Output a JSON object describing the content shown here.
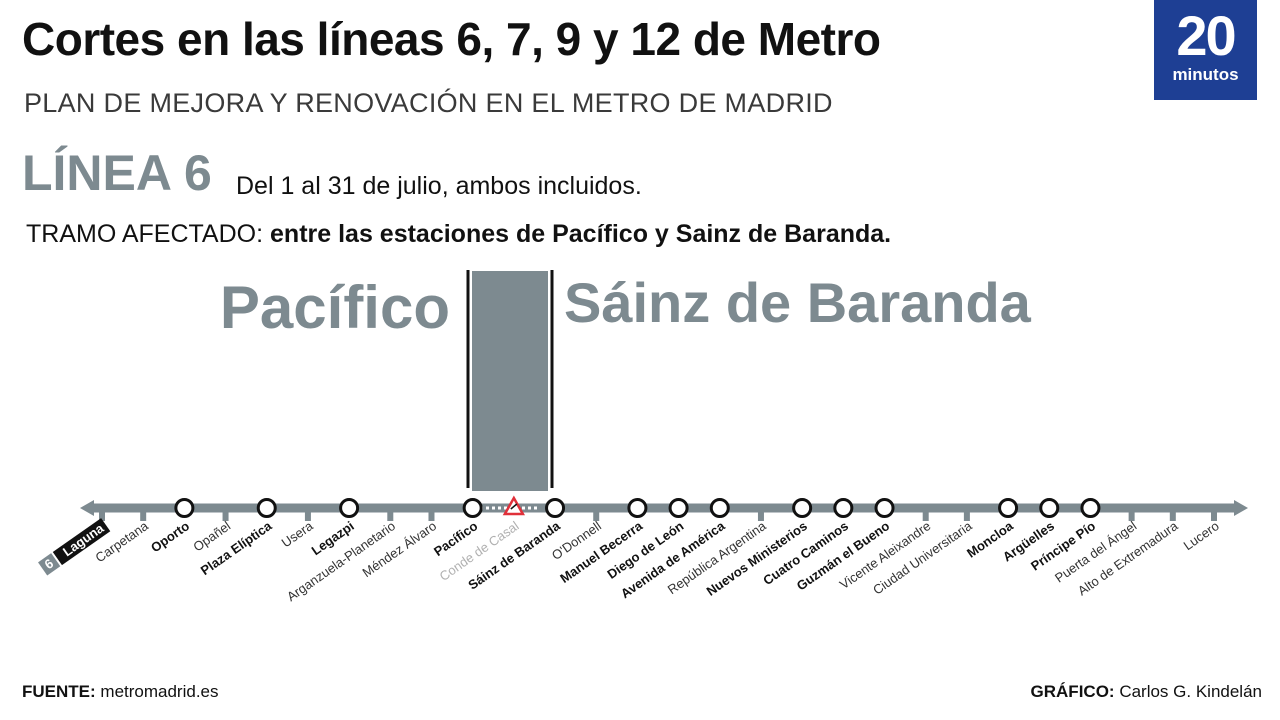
{
  "header": {
    "title": "Cortes en las líneas 6, 7, 9 y 12 de Metro",
    "subtitle": "PLAN DE MEJORA Y RENOVACIÓN EN EL METRO DE MADRID"
  },
  "logo": {
    "number": "20",
    "word": "minutos"
  },
  "line_info": {
    "name": "LÍNEA 6",
    "dates": "Del 1 al 31 de julio, ambos incluidos.",
    "affected_label": "TRAMO AFECTADO:",
    "affected_value": "entre las estaciones de Pacífico y Sainz de Baranda."
  },
  "section": {
    "left_station": "Pacífico",
    "right_station": "Sáinz de Baranda"
  },
  "line_badge": "6",
  "colors": {
    "line": "#7d8a90",
    "logo": "#1e3f94",
    "alert": "#e0303a"
  },
  "stations": [
    {
      "name": "Laguna",
      "type": "terminal"
    },
    {
      "name": "Carpetana",
      "type": "normal"
    },
    {
      "name": "Oporto",
      "type": "interchange"
    },
    {
      "name": "Opañel",
      "type": "normal"
    },
    {
      "name": "Plaza Elíptica",
      "type": "interchange"
    },
    {
      "name": "Usera",
      "type": "normal"
    },
    {
      "name": "Legazpi",
      "type": "interchange"
    },
    {
      "name": "Arganzuela-Planetario",
      "type": "normal"
    },
    {
      "name": "Méndez Álvaro",
      "type": "normal"
    },
    {
      "name": "Pacífico",
      "type": "interchange"
    },
    {
      "name": "Conde de Casal",
      "type": "affected"
    },
    {
      "name": "Sáinz de Baranda",
      "type": "interchange"
    },
    {
      "name": "O'Donnell",
      "type": "normal"
    },
    {
      "name": "Manuel Becerra",
      "type": "interchange"
    },
    {
      "name": "Diego de León",
      "type": "interchange"
    },
    {
      "name": "Avenida de América",
      "type": "interchange"
    },
    {
      "name": "República Argentina",
      "type": "normal"
    },
    {
      "name": "Nuevos Ministerios",
      "type": "interchange"
    },
    {
      "name": "Cuatro Caminos",
      "type": "interchange"
    },
    {
      "name": "Guzmán el Bueno",
      "type": "interchange"
    },
    {
      "name": "Vicente Aleixandre",
      "type": "normal"
    },
    {
      "name": "Ciudad Universitaria",
      "type": "normal"
    },
    {
      "name": "Moncloa",
      "type": "interchange"
    },
    {
      "name": "Argüelles",
      "type": "interchange"
    },
    {
      "name": "Príncipe Pío",
      "type": "interchange"
    },
    {
      "name": "Puerta del Ángel",
      "type": "normal"
    },
    {
      "name": "Alto de Extremadura",
      "type": "normal"
    },
    {
      "name": "Lucero",
      "type": "normal"
    }
  ],
  "footer": {
    "source_label": "FUENTE:",
    "source_value": "metromadrid.es",
    "credit_label": "GRÁFICO:",
    "credit_value": "Carlos G. Kindelán"
  }
}
